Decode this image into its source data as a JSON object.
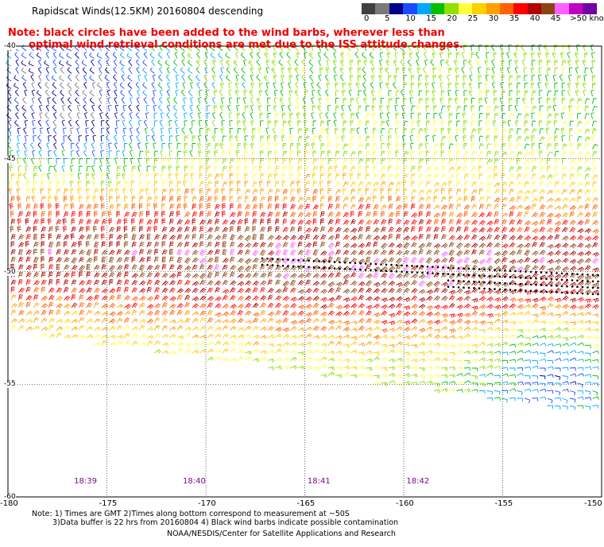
{
  "header": {
    "title": "Rapidscat Winds(12.5KM) 20160804 descending",
    "note_line1": "Note: black circles have been added to the wind barbs, wherever less than",
    "note_line2": "optimal wind retrieval conditions are met due to the ISS attitude changes."
  },
  "legend": {
    "unit": "knots",
    "colors": [
      "#404040",
      "#7a7a7a",
      "#00008b",
      "#1a4cff",
      "#00a8ff",
      "#00c000",
      "#90e000",
      "#ffff40",
      "#ffd000",
      "#ffa000",
      "#ff6000",
      "#ff0000",
      "#b00000",
      "#8b4513",
      "#ff60ff",
      "#c000c0",
      "#7000a0"
    ],
    "labels": [
      {
        "text": "0",
        "col": 0
      },
      {
        "text": "5",
        "col": 1.5
      },
      {
        "text": "10",
        "col": 3
      },
      {
        "text": "15",
        "col": 4.5
      },
      {
        "text": "20",
        "col": 6
      },
      {
        "text": "25",
        "col": 7.5
      },
      {
        "text": "30",
        "col": 9
      },
      {
        "text": "35",
        "col": 10.5
      },
      {
        "text": "40",
        "col": 12
      },
      {
        "text": "45",
        "col": 13.5
      },
      {
        "text": ">50 knots",
        "col": 14.9
      }
    ]
  },
  "map": {
    "lat_ticks": [
      "-40",
      "-45",
      "-50",
      "-55",
      "-60"
    ],
    "lon_ticks": [
      "-180",
      "-175",
      "-170",
      "-165",
      "-160",
      "-155",
      "-150"
    ],
    "lat_range": [
      -60,
      -40
    ],
    "lon_range": [
      -180,
      -150
    ],
    "time_labels": [
      {
        "text": "18:39",
        "lon": -176.1
      },
      {
        "text": "18:40",
        "lon": -170.6
      },
      {
        "text": "18:41",
        "lon": -164.3
      },
      {
        "text": "18:42",
        "lon": -159.3
      }
    ]
  },
  "footer": {
    "line1": "Note: 1) Times are GMT 2)Times along bottom correspond to measurement at ~50S",
    "line2": "3)Data buffer is 22 hrs from 20160804 4) Black wind barbs indicate possible contamination",
    "line3": "NOAA/NESDIS/Center for Satellite Applications and Research"
  }
}
